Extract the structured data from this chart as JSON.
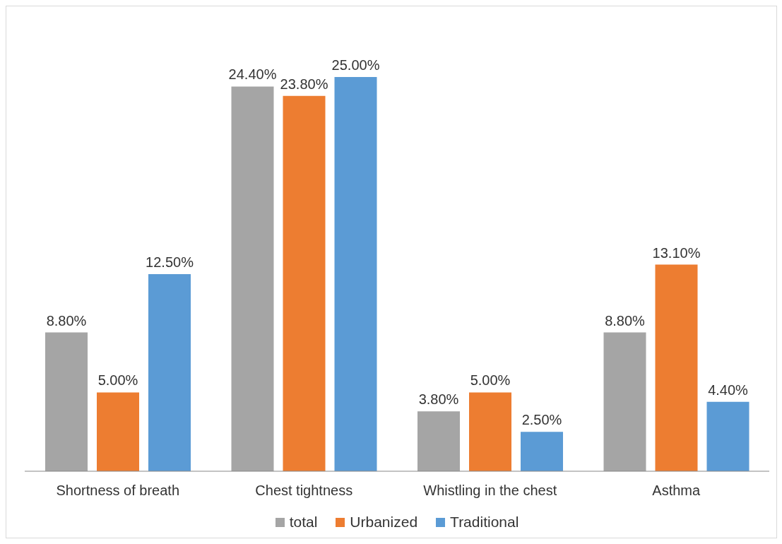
{
  "chart_data": {
    "type": "bar",
    "categories": [
      "Shortness of breath",
      "Chest tightness",
      "Whistling in the chest",
      "Asthma"
    ],
    "series": [
      {
        "name": "total",
        "color": "#a5a5a5",
        "values": [
          8.8,
          24.4,
          3.8,
          8.8
        ],
        "value_labels": [
          "8.80%",
          "24.40%",
          "3.80%",
          "8.80%"
        ]
      },
      {
        "name": "Urbanized",
        "color": "#ed7d31",
        "values": [
          5.0,
          23.8,
          5.0,
          13.1
        ],
        "value_labels": [
          "5.00%",
          "23.80%",
          "5.00%",
          "13.10%"
        ]
      },
      {
        "name": "Traditional",
        "color": "#5b9bd5",
        "values": [
          12.5,
          25.0,
          2.5,
          4.4
        ],
        "value_labels": [
          "12.50%",
          "25.00%",
          "2.50%",
          "4.40%"
        ]
      }
    ],
    "legend": "bottom",
    "grid": false
  }
}
